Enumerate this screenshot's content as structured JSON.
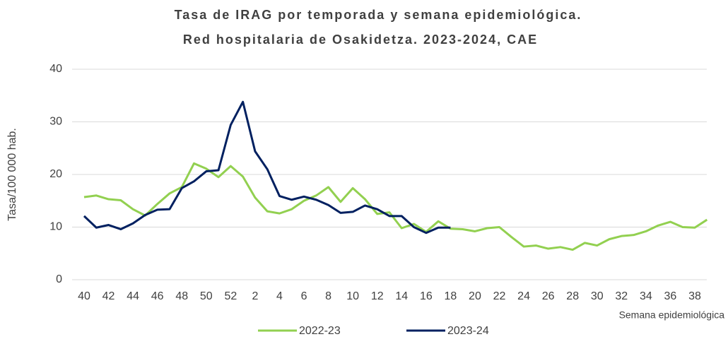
{
  "chart_data": {
    "type": "line",
    "title": "Tasa de IRAG por temporada y semana epidemiológica.",
    "subtitle": "Red hospitalaria de Osakidetza. 2023-2024, CAE",
    "y_label": "Tasa/100 000 hab.",
    "x_label": "Semana epidemiológica",
    "categories": [
      "40",
      null,
      "42",
      null,
      "44",
      null,
      "46",
      null,
      "48",
      null,
      "50",
      null,
      "52",
      null,
      "2",
      null,
      "4",
      null,
      "6",
      null,
      "8",
      null,
      "10",
      null,
      "12",
      null,
      "14",
      null,
      "16",
      null,
      "18",
      null,
      "20",
      null,
      "22",
      null,
      "24",
      null,
      "26",
      null,
      "28",
      null,
      "30",
      null,
      "32",
      null,
      "34",
      null,
      "36",
      null,
      "38",
      null
    ],
    "series": [
      {
        "name": "2022-23",
        "color": "#92d050",
        "values": [
          15.7,
          16.0,
          15.3,
          15.1,
          13.4,
          12.2,
          14.4,
          16.4,
          17.6,
          22.1,
          21.1,
          19.5,
          21.6,
          19.6,
          15.6,
          13.0,
          12.6,
          13.4,
          15.0,
          16.0,
          17.6,
          14.8,
          17.4,
          15.3,
          12.5,
          12.8,
          9.8,
          10.6,
          9.1,
          11.1,
          9.7,
          9.6,
          9.2,
          9.8,
          10.0,
          8.1,
          6.3,
          6.5,
          5.9,
          6.2,
          5.7,
          7.0,
          6.5,
          7.7,
          8.3,
          8.5,
          9.2,
          10.3,
          11.0,
          10.0,
          9.9,
          11.4
        ]
      },
      {
        "name": "2023-24",
        "color": "#002060",
        "values": [
          12.1,
          9.9,
          10.4,
          9.6,
          10.7,
          12.3,
          13.3,
          13.4,
          17.4,
          18.7,
          20.6,
          20.8,
          29.4,
          33.8,
          24.4,
          21.0,
          15.9,
          15.2,
          15.8,
          15.2,
          14.2,
          12.7,
          12.9,
          14.1,
          13.4,
          12.1,
          12.1,
          10.0,
          8.9,
          9.9,
          9.9,
          null,
          null,
          null,
          null,
          null,
          null,
          null,
          null,
          null,
          null,
          null,
          null,
          null,
          null,
          null,
          null,
          null,
          null,
          null,
          null,
          null
        ]
      }
    ],
    "ylim": [
      0,
      40
    ],
    "yticks": [
      0,
      10,
      20,
      30,
      40
    ],
    "grid": true
  }
}
